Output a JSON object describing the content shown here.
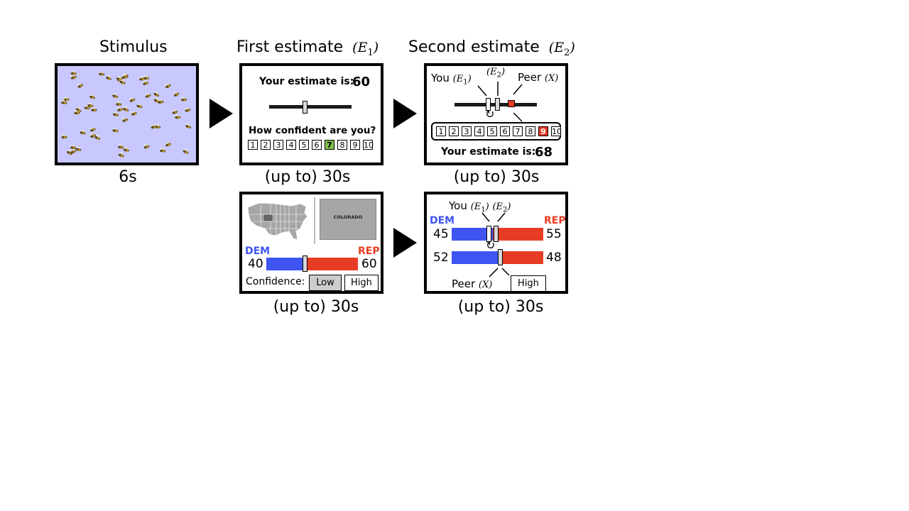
{
  "headers": {
    "stimulus": "Stimulus",
    "first": "First estimate",
    "first_math": "E",
    "first_sub": "1",
    "second": "Second estimate",
    "second_math": "E",
    "second_sub": "2"
  },
  "captions": {
    "stimulus": "6s",
    "first_top": "(up to) 30s",
    "second_top": "(up to) 30s",
    "first_bottom": "(up to) 30s",
    "second_bottom": "(up to) 30s"
  },
  "first_estimate": {
    "prompt": "Your estimate is:",
    "value": "60",
    "confidence_question": "How confident are you?",
    "scale": [
      "1",
      "2",
      "3",
      "4",
      "5",
      "6",
      "7",
      "8",
      "9",
      "10"
    ],
    "selected_index": 6,
    "selected_color": "#7fc24d"
  },
  "second_estimate": {
    "you_label": "You",
    "you_math": "E",
    "you_sub": "1",
    "e2_math": "E",
    "e2_sub": "2",
    "peer_label": "Peer",
    "peer_math": "X",
    "scale": [
      "1",
      "2",
      "3",
      "4",
      "5",
      "6",
      "7",
      "8",
      "9",
      "10"
    ],
    "selected_index": 8,
    "selected_color": "#e73c24",
    "prompt": "Your estimate is:",
    "value": "68"
  },
  "political_first": {
    "state_label": "COLORADO",
    "dem_label": "DEM",
    "rep_label": "REP",
    "dem_value": "40",
    "rep_value": "60",
    "confidence_label": "Confidence:",
    "low_label": "Low",
    "high_label": "High"
  },
  "political_second": {
    "you_label": "You",
    "you_math": "E",
    "you_sub": "1",
    "e2_math": "E",
    "e2_sub": "2",
    "dem_label": "DEM",
    "rep_label": "REP",
    "dem_value_you": "45",
    "rep_value_you": "55",
    "dem_value_peer": "52",
    "rep_value_peer": "48",
    "peer_label": "Peer",
    "peer_math": "X",
    "peer_confidence": "High"
  },
  "colors": {
    "stimulus_bg": "#c8c8ff",
    "dem_blue": "#3e55f2",
    "rep_red": "#e73c24",
    "map_gray": "#a6a6a6"
  }
}
